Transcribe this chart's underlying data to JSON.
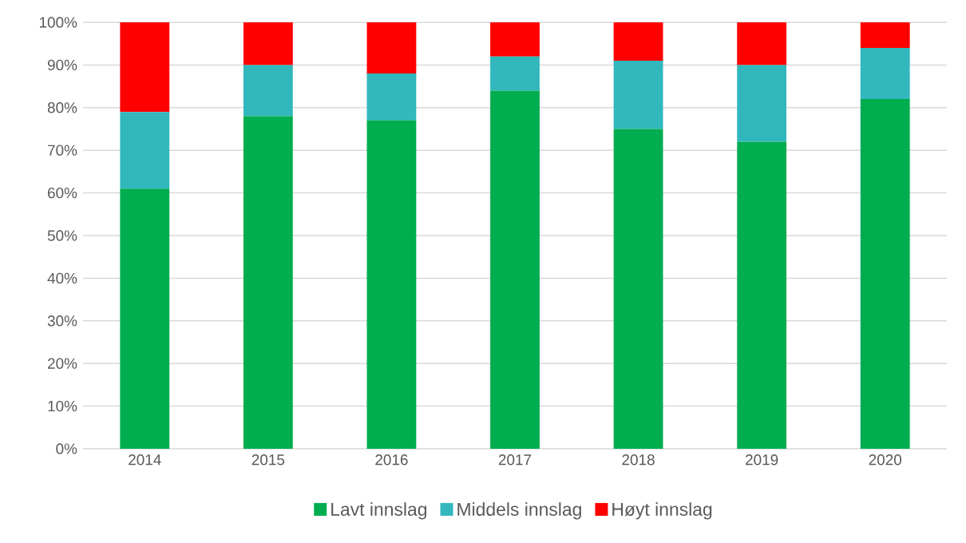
{
  "chart_data": {
    "type": "bar",
    "stacked": true,
    "categories": [
      "2014",
      "2015",
      "2016",
      "2017",
      "2018",
      "2019",
      "2020"
    ],
    "series": [
      {
        "name": "Lavt innslag",
        "color": "#00ad4f",
        "values": [
          61,
          78,
          77,
          84,
          75,
          72,
          82
        ]
      },
      {
        "name": "Middels innslag",
        "color": "#31b7bc",
        "values": [
          18,
          12,
          11,
          8,
          16,
          18,
          12
        ]
      },
      {
        "name": "Høyt innslag",
        "color": "#ff0000",
        "values": [
          21,
          10,
          12,
          8,
          9,
          10,
          6
        ]
      }
    ],
    "ylim": [
      0,
      100
    ],
    "yticks": [
      {
        "value": 0,
        "label": "0%"
      },
      {
        "value": 10,
        "label": "10%"
      },
      {
        "value": 20,
        "label": "20%"
      },
      {
        "value": 30,
        "label": "30%"
      },
      {
        "value": 40,
        "label": "40%"
      },
      {
        "value": 50,
        "label": "50%"
      },
      {
        "value": 60,
        "label": "60%"
      },
      {
        "value": 70,
        "label": "70%"
      },
      {
        "value": 80,
        "label": "80%"
      },
      {
        "value": 90,
        "label": "90%"
      },
      {
        "value": 100,
        "label": "100%"
      }
    ],
    "grid": "y",
    "legend": "bottom"
  }
}
